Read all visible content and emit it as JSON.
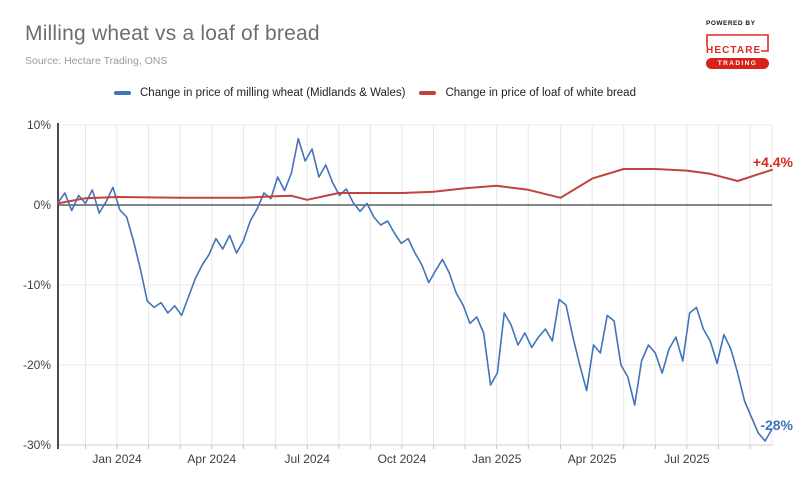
{
  "header": {
    "title": "Milling wheat vs a loaf of bread",
    "source": "Source: Hectare Trading, ONS",
    "logo": {
      "powered_by": "POWERED BY",
      "brand": "HECTARE",
      "sub": "TRADING",
      "color": "#e02b20",
      "pill_color": "#d8231a"
    }
  },
  "legend": [
    {
      "label": "Change in price of milling wheat (Midlands & Wales)",
      "color": "#4274b9"
    },
    {
      "label": "Change in price of loaf of white bread",
      "color": "#c2423d"
    }
  ],
  "chart_data": {
    "type": "line",
    "title": "Milling wheat vs a loaf of bread",
    "xlabel": "",
    "ylabel": "",
    "x_unit": "weeks from early Nov 2023",
    "x_range": [
      0,
      104
    ],
    "ylim": [
      -30,
      10
    ],
    "grid": true,
    "legend_position": "top",
    "y_ticks": [
      {
        "value": 10,
        "label": "10%"
      },
      {
        "value": 0,
        "label": "0%"
      },
      {
        "value": -10,
        "label": "-10%"
      },
      {
        "value": -20,
        "label": "-20%"
      },
      {
        "value": -30,
        "label": "-30%"
      }
    ],
    "x_ticks": [
      {
        "x": 8.6,
        "label": "Jan 2024"
      },
      {
        "x": 22.4,
        "label": "Apr 2024"
      },
      {
        "x": 36.3,
        "label": "Jul 2024"
      },
      {
        "x": 50.1,
        "label": "Oct 2024"
      },
      {
        "x": 63.9,
        "label": "Jan 2025"
      },
      {
        "x": 77.8,
        "label": "Apr 2025"
      },
      {
        "x": 91.6,
        "label": "Jul 2025"
      }
    ],
    "month_gridlines": [
      4.0,
      8.6,
      13.2,
      17.8,
      22.4,
      27.0,
      31.7,
      36.3,
      40.9,
      45.5,
      50.1,
      54.7,
      59.3,
      63.9,
      68.5,
      73.2,
      77.8,
      82.4,
      87.0,
      91.6,
      96.2,
      100.8
    ],
    "series": [
      {
        "name": "Change in price of milling wheat (Midlands & Wales)",
        "color": "#4274b9",
        "x_step": 1,
        "values": [
          0.3,
          1.5,
          -0.7,
          1.2,
          0.2,
          1.9,
          -1.0,
          0.4,
          2.2,
          -0.6,
          -1.5,
          -4.5,
          -8.0,
          -12.0,
          -12.8,
          -12.2,
          -13.5,
          -12.6,
          -13.8,
          -11.5,
          -9.2,
          -7.5,
          -6.2,
          -4.2,
          -5.5,
          -3.8,
          -6.0,
          -4.5,
          -2.0,
          -0.5,
          1.5,
          0.8,
          3.5,
          1.8,
          4.0,
          8.3,
          5.5,
          7.0,
          3.5,
          5.0,
          2.8,
          1.2,
          2.0,
          0.3,
          -0.8,
          0.2,
          -1.5,
          -2.5,
          -2.0,
          -3.5,
          -4.8,
          -4.2,
          -6.0,
          -7.5,
          -9.7,
          -8.2,
          -6.8,
          -8.5,
          -11.0,
          -12.5,
          -14.8,
          -14.0,
          -16.0,
          -22.5,
          -21.0,
          -13.5,
          -15.0,
          -17.5,
          -16.0,
          -17.8,
          -16.5,
          -15.5,
          -17.0,
          -11.8,
          -12.5,
          -16.5,
          -20.0,
          -23.2,
          -17.5,
          -18.5,
          -13.8,
          -14.5,
          -20.0,
          -21.5,
          -25.0,
          -19.5,
          -17.5,
          -18.5,
          -21.0,
          -18.0,
          -16.5,
          -19.5,
          -13.5,
          -12.8,
          -15.5,
          -17.0,
          -19.8,
          -16.2,
          -18.0,
          -21.0,
          -24.5,
          -26.5,
          -28.5,
          -29.5,
          -28.0
        ]
      },
      {
        "name": "Change in price of loaf of white bread",
        "color": "#c2423d",
        "points": [
          [
            0,
            0.2
          ],
          [
            4,
            0.85
          ],
          [
            8.6,
            1.0
          ],
          [
            13.2,
            0.95
          ],
          [
            17.8,
            0.9
          ],
          [
            22.4,
            0.9
          ],
          [
            27,
            0.9
          ],
          [
            31.7,
            1.1
          ],
          [
            34,
            1.15
          ],
          [
            36.3,
            0.65
          ],
          [
            40.9,
            1.5
          ],
          [
            45.5,
            1.5
          ],
          [
            50.1,
            1.5
          ],
          [
            54.7,
            1.65
          ],
          [
            59.3,
            2.1
          ],
          [
            63.9,
            2.4
          ],
          [
            68.5,
            1.9
          ],
          [
            73.2,
            0.9
          ],
          [
            77.8,
            3.3
          ],
          [
            82.4,
            4.5
          ],
          [
            87,
            4.5
          ],
          [
            91.6,
            4.3
          ],
          [
            95,
            3.9
          ],
          [
            99,
            3.0
          ],
          [
            104,
            4.4
          ]
        ]
      }
    ],
    "annotations": [
      {
        "text": "+4.4%",
        "y": 5.4,
        "color": "#d62920",
        "series": "bread"
      },
      {
        "text": "-28%",
        "y": -27.5,
        "color": "#3b73c0",
        "series": "wheat"
      }
    ],
    "colors": {
      "grid": "#e8e8e8",
      "zero_line": "#3f3f3f",
      "y_axis": "#4b4b4b",
      "x_axis": "#cccccc",
      "tick": "#c4c4c4",
      "tick_label": "#3d3d3d"
    }
  }
}
